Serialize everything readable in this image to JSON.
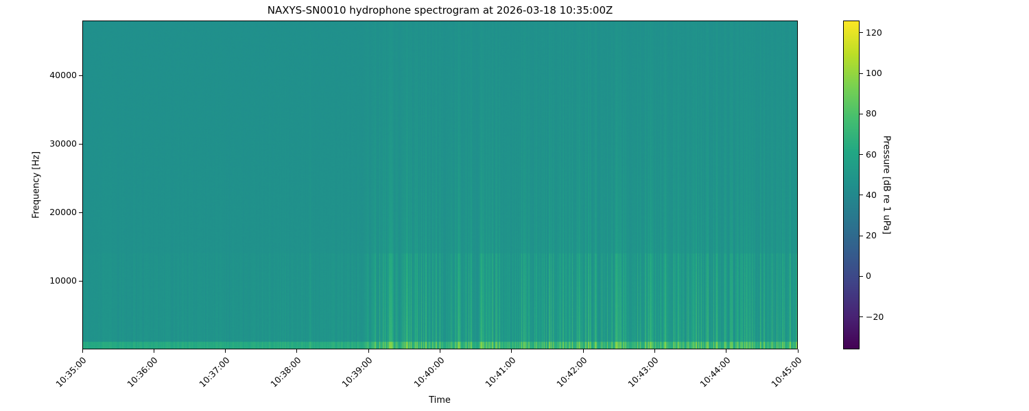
{
  "chart_data": {
    "type": "heatmap",
    "title": "NAXYS-SN0010 hydrophone spectrogram at 2026-03-18 10:35:00Z",
    "xlabel": "Time",
    "ylabel": "Frequency [Hz]",
    "x_range": [
      "10:35:00",
      "10:45:00"
    ],
    "x_ticks": [
      "10:35:00",
      "10:36:00",
      "10:37:00",
      "10:38:00",
      "10:39:00",
      "10:40:00",
      "10:41:00",
      "10:42:00",
      "10:43:00",
      "10:44:00",
      "10:45:00"
    ],
    "ylim": [
      0,
      48000
    ],
    "y_ticks": [
      10000,
      20000,
      30000,
      40000
    ],
    "colormap": "viridis",
    "colorbar": {
      "label": "Pressure [dB re 1 uPa]",
      "range": [
        -36,
        126
      ],
      "ticks": [
        -20,
        0,
        20,
        40,
        60,
        80,
        100,
        120
      ]
    },
    "description_of_levels": {
      "background_db": 45,
      "low_frequency_band_db": 75,
      "active_period_start": "10:39:00",
      "active_period_bursts_db": 70
    }
  }
}
